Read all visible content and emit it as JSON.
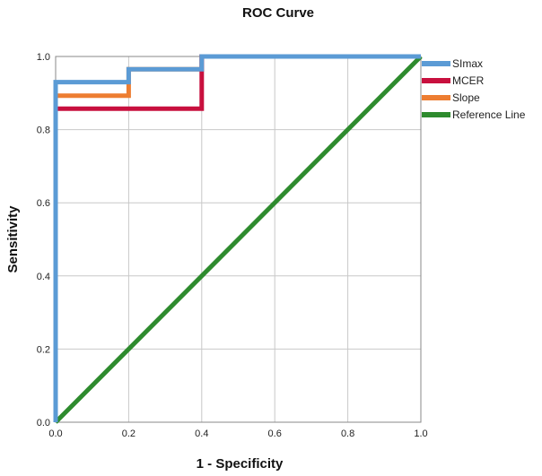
{
  "chart_data": {
    "type": "line",
    "title": "ROC Curve",
    "xlabel": "1 - Specificity",
    "ylabel": "Sensitivity",
    "xlim": [
      0,
      1
    ],
    "ylim": [
      0,
      1
    ],
    "xticks": [
      "0.0",
      "0.2",
      "0.4",
      "0.6",
      "0.8",
      "1.0"
    ],
    "yticks": [
      "0.0",
      "0.2",
      "0.4",
      "0.6",
      "0.8",
      "1.0"
    ],
    "grid": true,
    "legend_position": "right",
    "series": [
      {
        "name": "SImax",
        "color": "#5B9BD5",
        "points": [
          [
            0,
            0
          ],
          [
            0,
            0.93
          ],
          [
            0.2,
            0.93
          ],
          [
            0.2,
            0.965
          ],
          [
            0.4,
            0.965
          ],
          [
            0.4,
            1.0
          ],
          [
            1.0,
            1.0
          ]
        ]
      },
      {
        "name": "MCER",
        "color": "#C8103E",
        "points": [
          [
            0,
            0
          ],
          [
            0,
            0.857
          ],
          [
            0.4,
            0.857
          ],
          [
            0.4,
            1.0
          ],
          [
            1.0,
            1.0
          ]
        ]
      },
      {
        "name": "Slope",
        "color": "#ED7D31",
        "points": [
          [
            0,
            0
          ],
          [
            0,
            0.893
          ],
          [
            0.2,
            0.893
          ],
          [
            0.2,
            0.965
          ],
          [
            0.4,
            0.965
          ],
          [
            0.4,
            1.0
          ],
          [
            1.0,
            1.0
          ]
        ]
      },
      {
        "name": "Reference Line",
        "color": "#2E8B2E",
        "points": [
          [
            0,
            0
          ],
          [
            1.0,
            1.0
          ]
        ]
      }
    ]
  }
}
